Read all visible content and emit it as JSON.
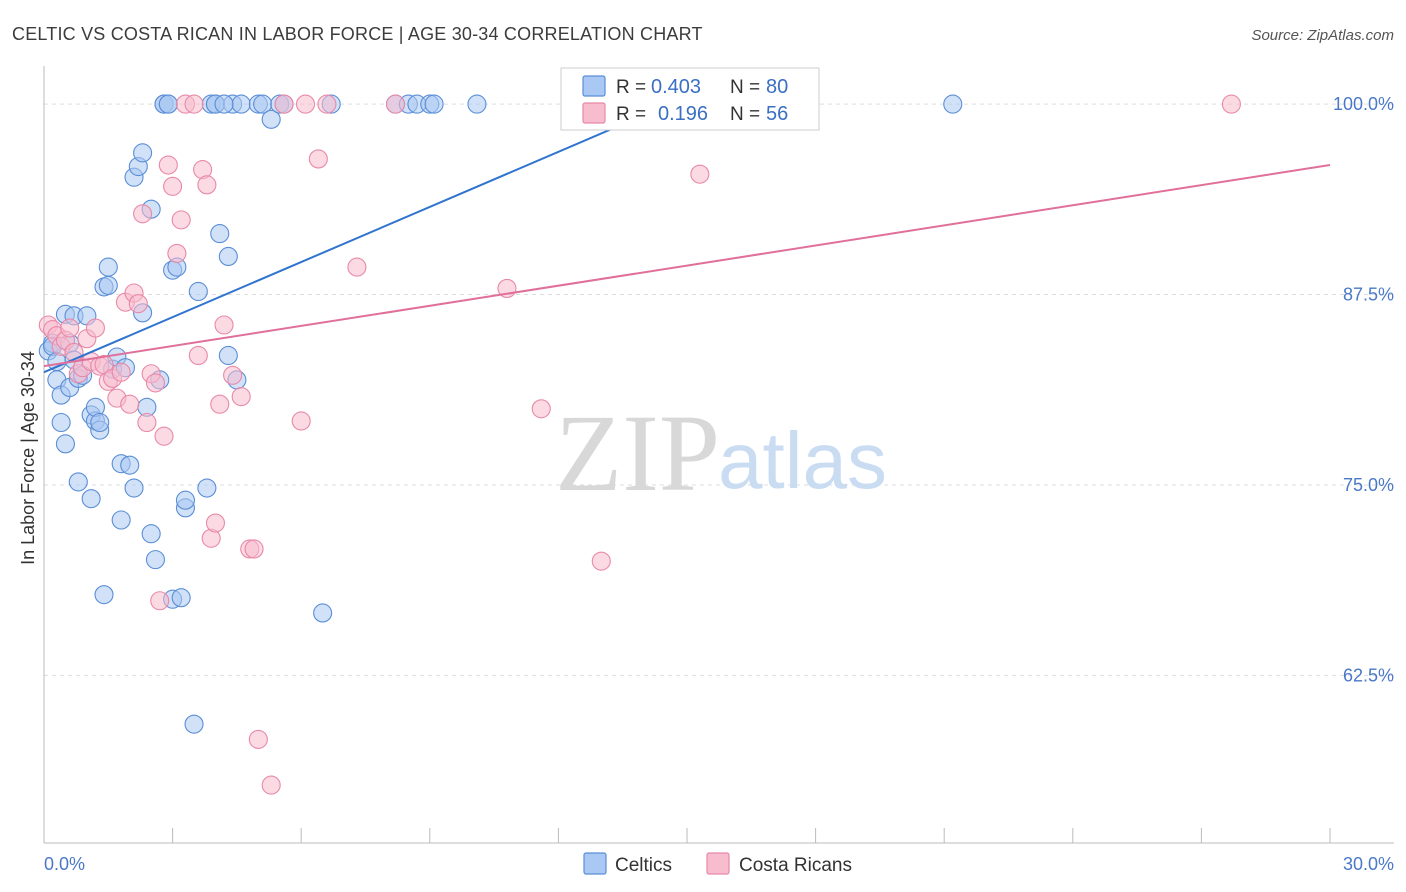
{
  "title": "CELTIC VS COSTA RICAN IN LABOR FORCE | AGE 30-34 CORRELATION CHART",
  "source": "Source: ZipAtlas.com",
  "watermark": {
    "zip": "ZIP",
    "atlas": "atlas"
  },
  "legend": {
    "rows": [
      {
        "r_label": "R =",
        "r_value": "0.403",
        "n_label": "N =",
        "n_value": "80"
      },
      {
        "r_label": "R =",
        "r_value": "0.196",
        "n_label": "N =",
        "n_value": "56"
      }
    ]
  },
  "colors": {
    "celtic_fill": "#a9c8f3",
    "celtic_stroke": "#5b8ed6",
    "celtic_line": "#2f74cf",
    "costa_fill": "#f7bccd",
    "costa_stroke": "#e889a8",
    "costa_line": "#e0709a",
    "grid": "#dddddd",
    "axis_label": "#4a78c8"
  },
  "chart_data": {
    "type": "scatter",
    "title": "CELTIC VS COSTA RICAN IN LABOR FORCE | AGE 30-34 CORRELATION CHART",
    "xlabel": "",
    "ylabel": "In Labor Force | Age 30-34",
    "xlim": [
      0,
      30
    ],
    "ylim": [
      51.5,
      102.5
    ],
    "x_tick_labels": [
      "0.0%",
      "30.0%"
    ],
    "y_ticks": [
      62.5,
      75.0,
      87.5,
      100.0
    ],
    "y_tick_labels": [
      "62.5%",
      "75.0%",
      "87.5%",
      "100.0%"
    ],
    "series": [
      {
        "name": "Celtics",
        "r": 0.403,
        "n": 80,
        "trend": {
          "x": [
            0,
            14.6
          ],
          "y": [
            82.4,
            100.0
          ]
        },
        "x": [
          0.1,
          0.2,
          0.2,
          0.3,
          0.3,
          0.4,
          0.4,
          0.5,
          0.5,
          0.6,
          0.6,
          0.7,
          0.7,
          0.8,
          0.8,
          0.9,
          1.0,
          1.1,
          1.1,
          1.2,
          1.2,
          1.3,
          1.3,
          1.4,
          1.4,
          1.5,
          1.5,
          1.6,
          1.7,
          1.8,
          1.8,
          1.9,
          2.0,
          2.1,
          2.1,
          2.2,
          2.3,
          2.3,
          2.4,
          2.5,
          2.5,
          2.6,
          2.7,
          2.8,
          2.8,
          2.9,
          2.9,
          3.0,
          3.0,
          3.1,
          3.2,
          3.3,
          3.3,
          3.5,
          3.6,
          3.8,
          3.9,
          4.0,
          4.0,
          4.1,
          4.3,
          4.3,
          4.4,
          4.5,
          4.6,
          5.0,
          5.1,
          5.3,
          5.5,
          5.6,
          6.5,
          6.7,
          8.2,
          8.5,
          8.7,
          9.0,
          9.1,
          10.1,
          21.2,
          4.2
        ],
        "y": [
          83.8,
          84.3,
          84.1,
          81.9,
          83.1,
          80.9,
          79.1,
          86.2,
          77.7,
          81.4,
          84.3,
          83.2,
          86.1,
          82.0,
          75.2,
          82.2,
          86.1,
          79.6,
          74.1,
          79.2,
          80.1,
          78.6,
          79.1,
          67.8,
          88.0,
          89.3,
          88.1,
          82.6,
          83.4,
          76.4,
          72.7,
          82.7,
          76.3,
          74.8,
          95.2,
          95.9,
          96.8,
          86.3,
          80.1,
          93.1,
          71.8,
          70.1,
          81.9,
          100.0,
          100.0,
          100.0,
          100.0,
          67.5,
          89.1,
          89.3,
          67.6,
          73.5,
          74.0,
          59.3,
          87.7,
          74.8,
          100.0,
          100.0,
          100.0,
          91.5,
          90.0,
          83.5,
          100.0,
          81.9,
          100.0,
          100.0,
          100.0,
          99.0,
          100.0,
          100.0,
          66.6,
          100.0,
          100.0,
          100.0,
          100.0,
          100.0,
          100.0,
          100.0,
          100.0,
          100.0
        ]
      },
      {
        "name": "Costa Ricans",
        "r": 0.196,
        "n": 56,
        "trend": {
          "x": [
            0,
            30
          ],
          "y": [
            82.8,
            96.0
          ]
        },
        "x": [
          0.1,
          0.2,
          0.3,
          0.4,
          0.5,
          0.6,
          0.7,
          0.8,
          0.9,
          1.0,
          1.1,
          1.2,
          1.3,
          1.4,
          1.5,
          1.6,
          1.7,
          1.8,
          1.9,
          2.0,
          2.1,
          2.2,
          2.3,
          2.4,
          2.5,
          2.6,
          2.7,
          2.8,
          2.9,
          3.0,
          3.1,
          3.2,
          3.3,
          3.5,
          3.6,
          3.7,
          3.8,
          3.9,
          4.0,
          4.1,
          4.2,
          4.4,
          4.6,
          4.8,
          4.9,
          5.0,
          5.3,
          5.6,
          6.0,
          6.4,
          6.6,
          7.3,
          8.2,
          10.8,
          11.6,
          13.0
        ],
        "y": [
          85.5,
          85.2,
          84.8,
          84.1,
          84.5,
          85.3,
          83.7,
          82.3,
          82.7,
          84.6,
          83.1,
          85.3,
          82.8,
          82.9,
          81.8,
          82.0,
          80.7,
          82.4,
          87.0,
          80.3,
          87.6,
          86.9,
          92.8,
          79.1,
          82.3,
          81.7,
          67.4,
          78.2,
          96.0,
          94.6,
          90.2,
          92.4,
          100.0,
          100.0,
          83.5,
          95.7,
          94.7,
          71.5,
          72.5,
          80.3,
          85.5,
          82.2,
          80.8,
          70.8,
          70.8,
          58.3,
          55.3,
          100.0,
          79.2,
          96.4,
          100.0,
          89.3,
          100.0,
          87.9,
          80.0,
          70.0
        ],
        "extra": {
          "x": [
            6.1,
            15.3,
            27.7
          ],
          "y": [
            100.0,
            95.4,
            100.0
          ]
        }
      }
    ]
  },
  "bottom_legend": [
    {
      "label": "Celtics"
    },
    {
      "label": "Costa Ricans"
    }
  ]
}
